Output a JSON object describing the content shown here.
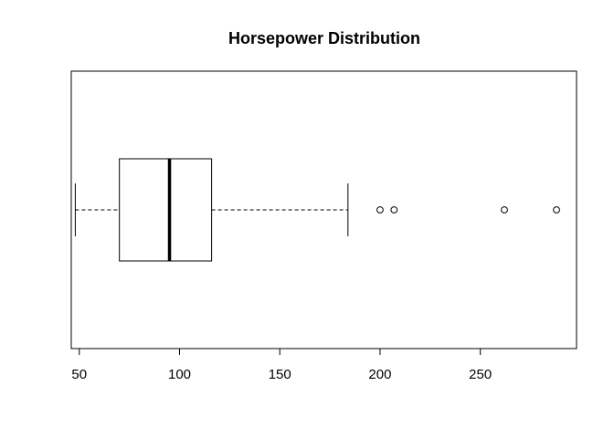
{
  "chart_data": {
    "type": "boxplot",
    "orientation": "horizontal",
    "title": "Horsepower Distribution",
    "xlabel": "",
    "ylabel": "",
    "xlim": [
      46,
      298
    ],
    "x_ticks": [
      50,
      100,
      150,
      200,
      250
    ],
    "x_tick_labels": [
      "50",
      "100",
      "150",
      "200",
      "250"
    ],
    "grid": false,
    "legend": "none",
    "box": {
      "whisker_low": 48,
      "q1": 70,
      "median": 95,
      "q3": 116,
      "whisker_high": 184,
      "outliers": [
        200,
        207,
        262,
        288
      ]
    },
    "colors": {
      "stroke": "#000000",
      "background": "#ffffff"
    }
  }
}
